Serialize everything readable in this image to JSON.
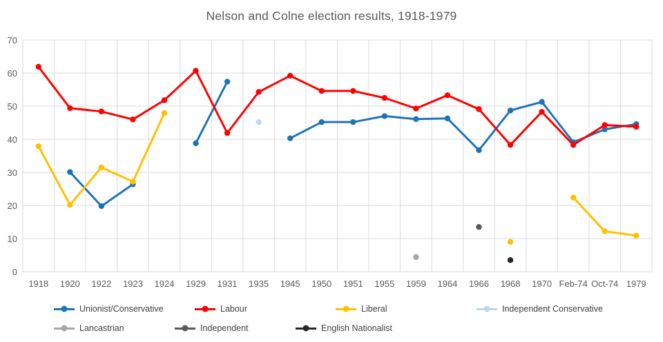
{
  "chart_data": {
    "type": "line",
    "title": "Nelson and Colne election results, 1918-1979",
    "xlabel": "",
    "ylabel": "",
    "ylim": [
      0,
      70
    ],
    "y_tick_step": 10,
    "grid": true,
    "legend_position": "bottom",
    "categories": [
      "1918",
      "1920",
      "1922",
      "1923",
      "1924",
      "1929",
      "1931",
      "1935",
      "1945",
      "1950",
      "1951",
      "1955",
      "1959",
      "1964",
      "1966",
      "1968",
      "1970",
      "Feb-74",
      "Oct-74",
      "1979"
    ],
    "series": [
      {
        "name": "Unionist/Conservative",
        "color": "#1E73B8",
        "values": [
          null,
          30.1,
          19.8,
          26.4,
          null,
          38.8,
          57.4,
          null,
          40.3,
          45.2,
          45.2,
          47.0,
          46.1,
          46.3,
          36.7,
          48.7,
          51.3,
          39.1,
          43.0,
          44.6
        ]
      },
      {
        "name": "Labour",
        "color": "#FF0000",
        "values": [
          61.9,
          49.4,
          48.4,
          46.0,
          51.8,
          60.7,
          41.9,
          54.3,
          59.2,
          54.6,
          54.6,
          52.5,
          49.3,
          53.3,
          49.1,
          38.3,
          48.3,
          38.3,
          44.3,
          43.8
        ]
      },
      {
        "name": "Liberal",
        "color": "#FFC000",
        "values": [
          37.9,
          20.2,
          31.5,
          27.2,
          47.9,
          null,
          null,
          null,
          null,
          null,
          null,
          null,
          null,
          null,
          null,
          9.0,
          null,
          22.4,
          12.2,
          10.9
        ]
      },
      {
        "name": "Independent Conservative",
        "color": "#BDD7EE",
        "values": [
          null,
          null,
          null,
          null,
          null,
          null,
          null,
          45.2,
          null,
          null,
          null,
          null,
          null,
          null,
          null,
          null,
          null,
          null,
          null,
          null
        ]
      },
      {
        "name": "Lancastrian",
        "color": "#A5A5A5",
        "values": [
          null,
          null,
          null,
          null,
          null,
          null,
          null,
          null,
          null,
          null,
          null,
          null,
          4.4,
          null,
          null,
          null,
          null,
          null,
          null,
          null
        ]
      },
      {
        "name": "Independent",
        "color": "#595959",
        "values": [
          null,
          null,
          null,
          null,
          null,
          null,
          null,
          null,
          null,
          null,
          null,
          null,
          null,
          null,
          13.5,
          null,
          null,
          null,
          null,
          null
        ]
      },
      {
        "name": "English Nationalist",
        "color": "#262626",
        "values": [
          null,
          null,
          null,
          null,
          null,
          null,
          null,
          null,
          null,
          null,
          null,
          null,
          null,
          null,
          null,
          3.5,
          null,
          null,
          null,
          null
        ]
      }
    ]
  }
}
